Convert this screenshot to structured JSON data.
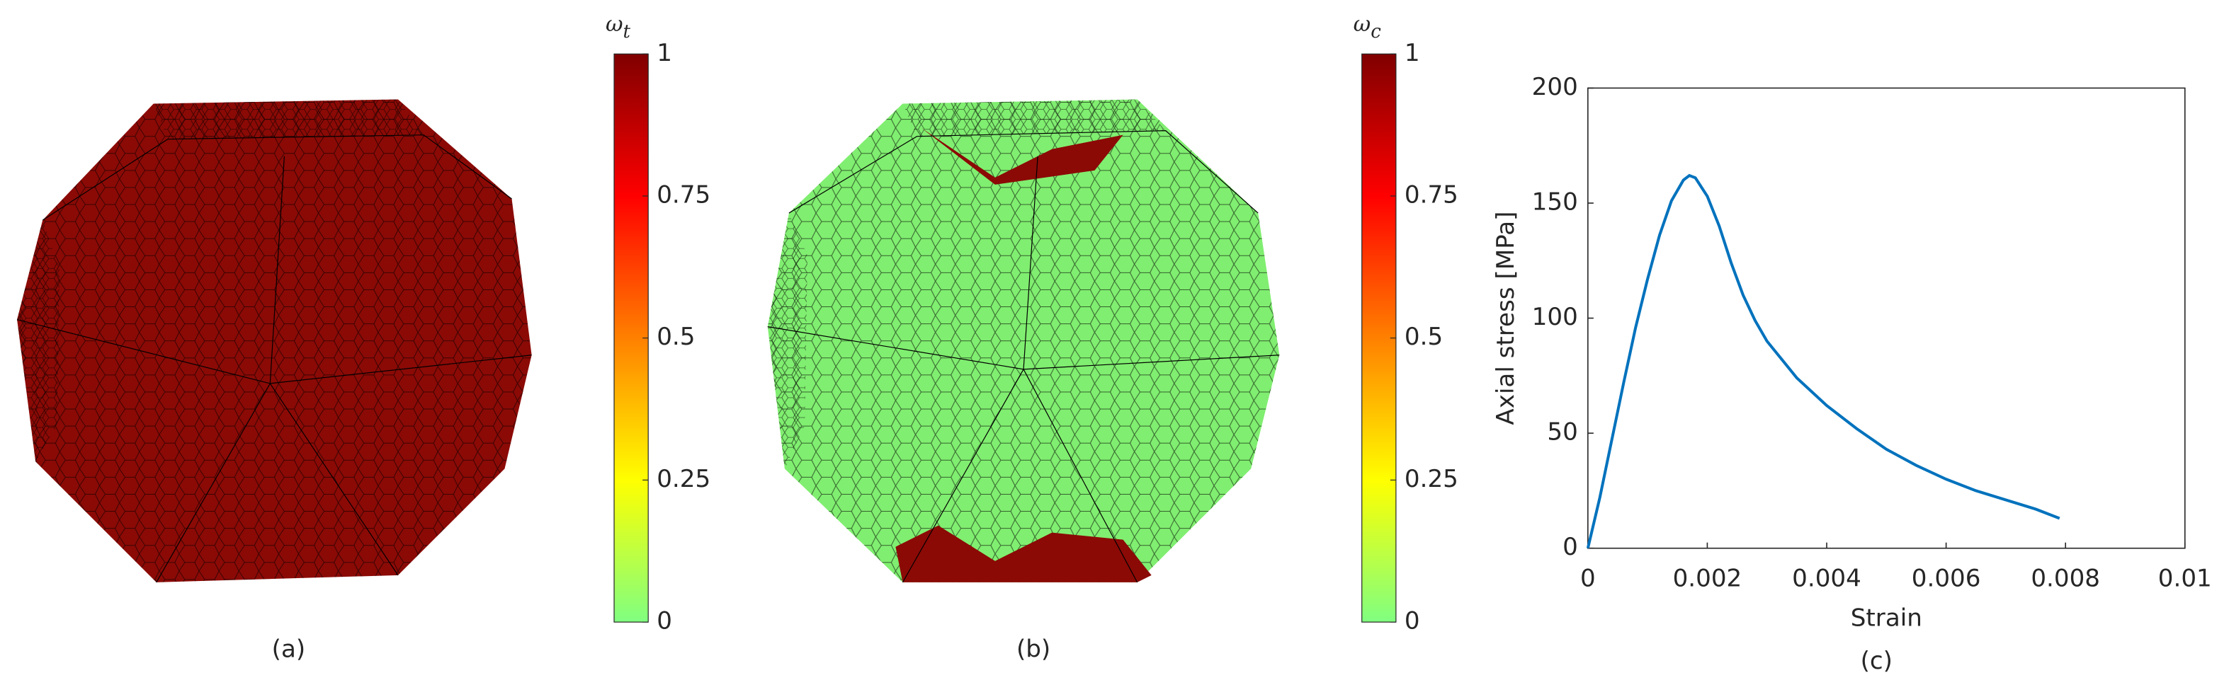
{
  "chart_data": [
    {
      "type": "colorbar-image",
      "caption": "(a)",
      "colorbar_symbol": "ω",
      "colorbar_subscript": "t",
      "ylim": [
        0,
        1
      ],
      "yticks": [
        0,
        0.25,
        0.5,
        0.75,
        1
      ],
      "colormap": [
        "#80ff80",
        "#ffff00",
        "#ff8000",
        "#ff0000",
        "#800000"
      ],
      "fill": "#8b0a06"
    },
    {
      "type": "colorbar-image",
      "caption": "(b)",
      "colorbar_symbol": "ω",
      "colorbar_subscript": "c",
      "ylim": [
        0,
        1
      ],
      "yticks": [
        0,
        0.25,
        0.5,
        0.75,
        1
      ],
      "colormap": [
        "#80ff80",
        "#ffff00",
        "#ff8000",
        "#ff0000",
        "#800000"
      ],
      "fill": "#80ee70"
    },
    {
      "type": "line",
      "caption": "(c)",
      "x_label": "Strain",
      "y_label": "Axial stress [MPa]",
      "xlim": [
        0,
        0.01
      ],
      "xticks": [
        0,
        0.002,
        0.004,
        0.006,
        0.008,
        0.01
      ],
      "ylim": [
        0,
        200
      ],
      "yticks": [
        0,
        50,
        100,
        150,
        200
      ],
      "color": "#0072bd",
      "x": [
        0,
        0.0002,
        0.0004,
        0.0006,
        0.0008,
        0.001,
        0.0012,
        0.0014,
        0.0016,
        0.0017,
        0.0018,
        0.002,
        0.0022,
        0.0024,
        0.0026,
        0.0028,
        0.003,
        0.0035,
        0.004,
        0.0045,
        0.005,
        0.0055,
        0.006,
        0.0065,
        0.007,
        0.0075,
        0.0079
      ],
      "values": [
        0,
        22,
        47,
        72,
        96,
        117,
        136,
        151,
        160,
        162,
        161,
        153,
        140,
        124,
        110,
        99,
        90,
        74,
        62,
        52,
        43,
        36,
        30,
        25,
        21,
        17,
        13
      ]
    }
  ]
}
